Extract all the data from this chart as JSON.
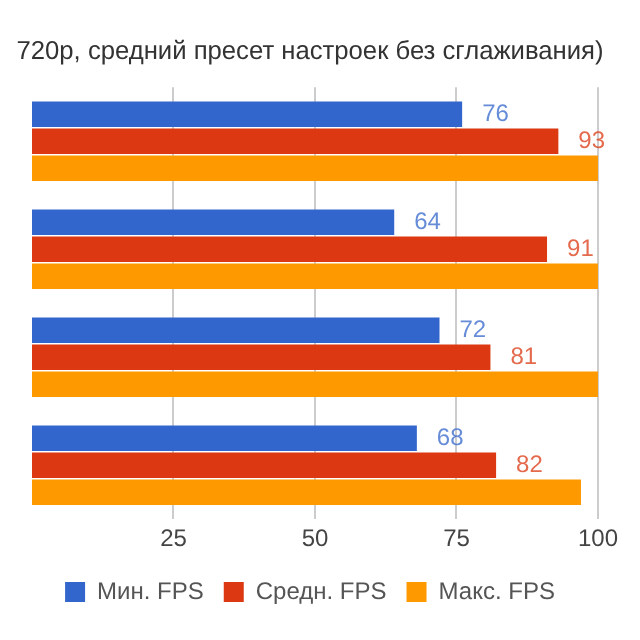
{
  "chart_data": {
    "type": "bar",
    "orientation": "horizontal",
    "title": "720p, средний пресет настроек без сглаживания)",
    "categories": [
      null,
      null,
      null,
      null
    ],
    "series": [
      {
        "name": "Мин. FPS",
        "color": "#3366cc",
        "values": [
          76,
          64,
          72,
          68
        ],
        "value_labels": [
          "76",
          "64",
          "72",
          "68"
        ]
      },
      {
        "name": "Средн. FPS",
        "color": "#dc3912",
        "values": [
          93,
          91,
          81,
          82
        ],
        "value_labels": [
          "93",
          "91",
          "81",
          "82"
        ]
      },
      {
        "name": "Макс. FPS",
        "color": "#ff9900",
        "values": [
          100,
          100,
          100,
          97
        ]
      }
    ],
    "xlim": [
      0,
      100
    ],
    "xticks": [
      25,
      50,
      75,
      100
    ],
    "grid": "x",
    "legend": "bottom"
  }
}
